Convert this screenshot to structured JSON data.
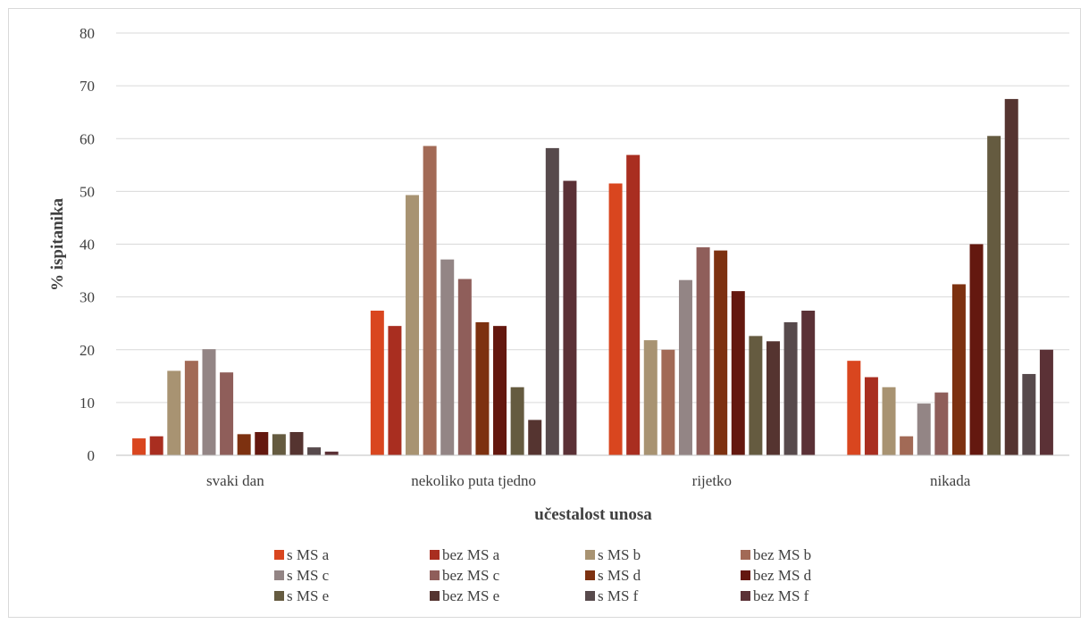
{
  "chart_data": {
    "type": "bar",
    "xlabel": "učestalost unosa",
    "ylabel": "% ispitanika",
    "ylim": [
      0,
      80
    ],
    "yticks": [
      0,
      10,
      20,
      30,
      40,
      50,
      60,
      70,
      80
    ],
    "grid": true,
    "legend_position": "bottom",
    "categories": [
      "svaki dan",
      "nekoliko puta tjedno",
      "rijetko",
      "nikada"
    ],
    "series": [
      {
        "name": "s MS a",
        "color": "#d9461f",
        "values": [
          3.2,
          27.4,
          51.5,
          17.9
        ]
      },
      {
        "name": "bez MS a",
        "color": "#a92e20",
        "values": [
          3.6,
          24.5,
          56.9,
          14.8
        ]
      },
      {
        "name": "s MS b",
        "color": "#a89372",
        "values": [
          16.0,
          49.3,
          21.8,
          12.9
        ]
      },
      {
        "name": "bez MS b",
        "color": "#a26a56",
        "values": [
          17.9,
          58.6,
          20.0,
          3.6
        ]
      },
      {
        "name": "s MS c",
        "color": "#938585",
        "values": [
          20.1,
          37.1,
          33.2,
          9.8
        ]
      },
      {
        "name": "bez MS c",
        "color": "#8f5e5a",
        "values": [
          15.7,
          33.4,
          39.4,
          11.9
        ]
      },
      {
        "name": "s MS d",
        "color": "#7d3110",
        "values": [
          4.0,
          25.2,
          38.8,
          32.4
        ]
      },
      {
        "name": "bez MS d",
        "color": "#64180f",
        "values": [
          4.4,
          24.5,
          31.1,
          40.0
        ]
      },
      {
        "name": "s MS e",
        "color": "#655b40",
        "values": [
          4.0,
          12.9,
          22.6,
          60.5
        ]
      },
      {
        "name": "bez MS e",
        "color": "#553430",
        "values": [
          4.4,
          6.7,
          21.6,
          67.5
        ]
      },
      {
        "name": "s MS f",
        "color": "#574a4c",
        "values": [
          1.5,
          58.2,
          25.2,
          15.4
        ]
      },
      {
        "name": "bez MS f",
        "color": "#5b3136",
        "values": [
          0.7,
          52.0,
          27.4,
          20.0
        ]
      }
    ]
  }
}
